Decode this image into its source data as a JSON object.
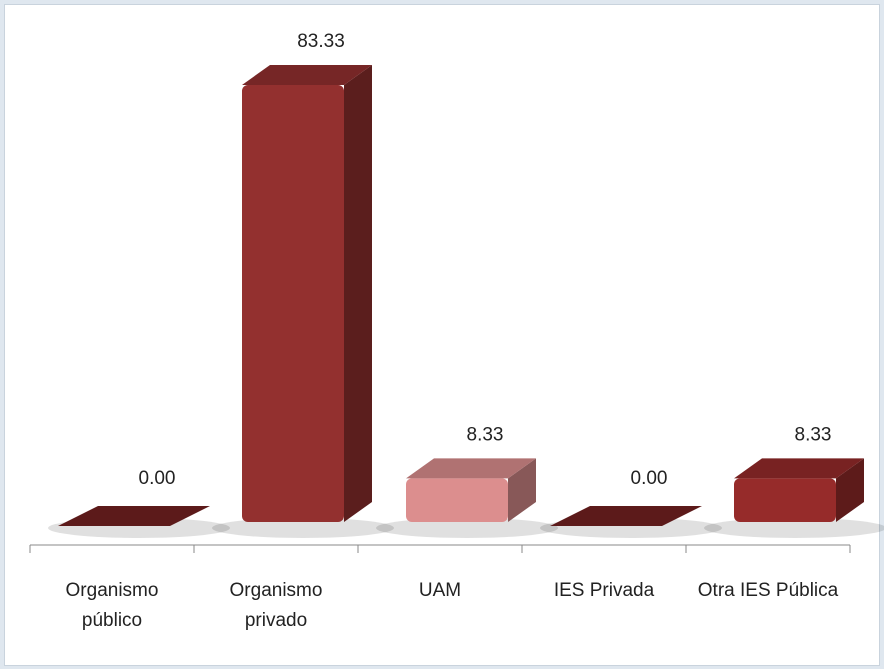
{
  "chart_data": {
    "type": "bar3d",
    "categories": [
      "Organismo público",
      "Organismo privado",
      "UAM",
      "IES Privada",
      "Otra IES Pública"
    ],
    "values": [
      0,
      83.33,
      8.33,
      0,
      8.33
    ],
    "value_labels": [
      "0.00",
      "83.33",
      "8.33",
      "0.00",
      "8.33"
    ],
    "colors": [
      "#5c1a1a",
      "#93302f",
      "#dc8e8e",
      "#5c1a1a",
      "#962b2a"
    ]
  }
}
